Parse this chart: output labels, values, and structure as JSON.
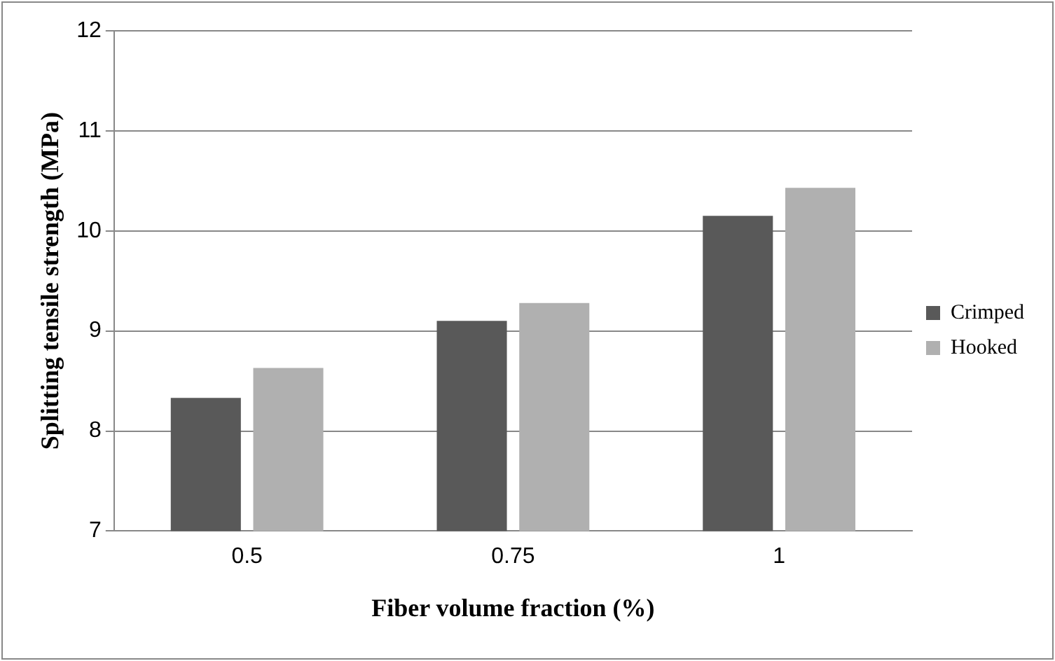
{
  "chart_data": {
    "type": "bar",
    "xlabel": "Fiber volume fraction (%)",
    "ylabel": "Splitting tensile strength (MPa)",
    "categories": [
      "0.5",
      "0.75",
      "1"
    ],
    "series": [
      {
        "name": "Crimped",
        "color": "#595959",
        "values": [
          8.33,
          9.1,
          10.15
        ]
      },
      {
        "name": "Hooked",
        "color": "#b0b0b0",
        "values": [
          8.63,
          9.28,
          10.43
        ]
      }
    ],
    "ylim": [
      7,
      12
    ],
    "yticks": [
      7,
      8,
      9,
      10,
      11,
      12
    ],
    "grid": "y",
    "legend": "right"
  }
}
